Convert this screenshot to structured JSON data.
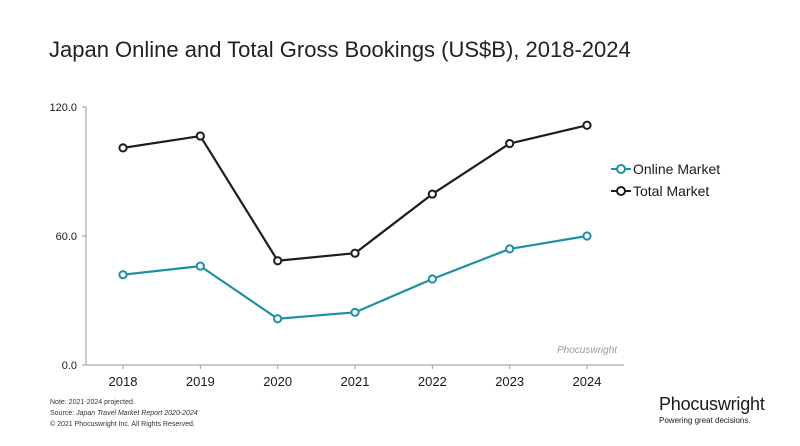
{
  "title": "Japan Online and Total Gross Bookings (US$B), 2018-2024",
  "chart_data": {
    "type": "line",
    "categories": [
      "2018",
      "2019",
      "2020",
      "2021",
      "2022",
      "2023",
      "2024"
    ],
    "series": [
      {
        "name": "Online Market",
        "color": "#1f8fa6",
        "values": [
          42,
          46,
          21.5,
          24.5,
          40,
          54,
          60
        ]
      },
      {
        "name": "Total Market",
        "color": "#1c1c24",
        "values": [
          101,
          106.5,
          48.5,
          52,
          79.5,
          103,
          111.5
        ]
      }
    ],
    "ylim": [
      0,
      120
    ],
    "yticks": [
      "120.0",
      "60.0",
      "0.0"
    ],
    "legend": "right",
    "grid": false
  },
  "watermark": "Phocuswright",
  "footer": {
    "note": "Note: 2021-2024 projected.",
    "source_prefix": "Source: ",
    "source_title": "Japan Travel Market Report 2020-2024",
    "copyright": "© 2021 Phocuswright Inc. All Rights Reserved."
  },
  "brand": {
    "name": "Phocuswright",
    "tagline": "Powering great decisions."
  }
}
